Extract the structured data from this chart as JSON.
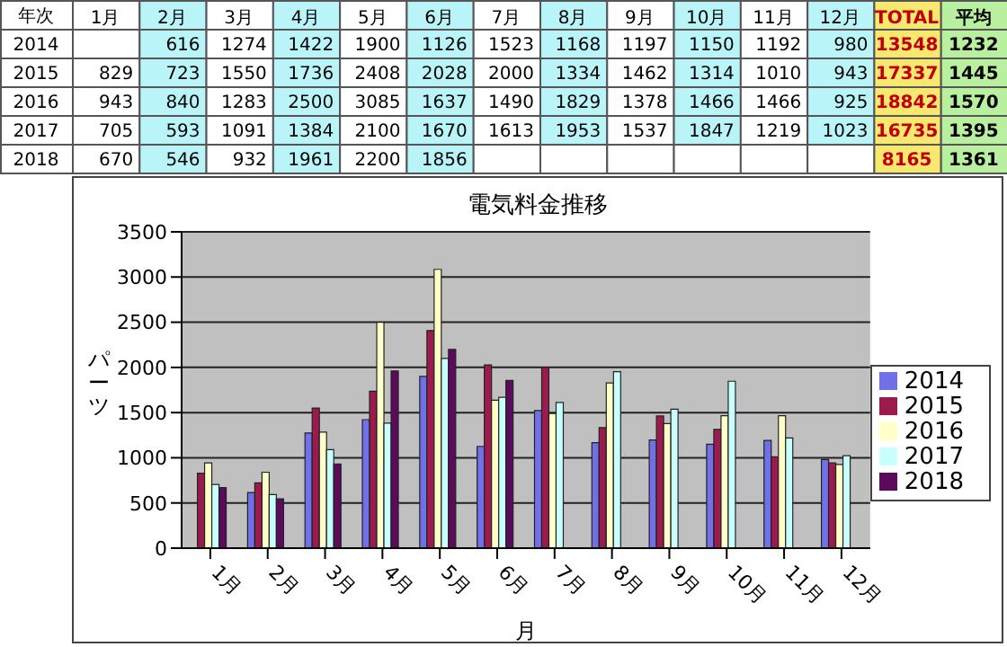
{
  "chart_data": [
    {
      "type": "heatmap",
      "ylabel": "年次",
      "categories": [
        "1月",
        "2月",
        "3月",
        "4月",
        "5月",
        "6月",
        "7月",
        "8月",
        "9月",
        "10月",
        "11月",
        "12月",
        "TOTAL",
        "平均"
      ],
      "y_categories": [
        "2014",
        "2015",
        "2016",
        "2017",
        "2018"
      ],
      "cells": [
        [
          null,
          616,
          1274,
          1422,
          1900,
          1126,
          1523,
          1168,
          1197,
          1150,
          1192,
          980,
          13548,
          1232
        ],
        [
          829,
          723,
          1550,
          1736,
          2408,
          2028,
          2000,
          1334,
          1462,
          1314,
          1010,
          943,
          17337,
          1445
        ],
        [
          943,
          840,
          1283,
          2500,
          3085,
          1637,
          1490,
          1829,
          1378,
          1466,
          1466,
          925,
          18842,
          1570
        ],
        [
          705,
          593,
          1091,
          1384,
          2100,
          1670,
          1613,
          1953,
          1537,
          1847,
          1219,
          1023,
          16735,
          1395
        ],
        [
          670,
          546,
          932,
          1961,
          2200,
          1856,
          null,
          null,
          null,
          null,
          null,
          null,
          8165,
          1361
        ]
      ],
      "cell_labels": [
        [
          null,
          "616",
          "1274",
          "1422",
          "1900",
          "1126",
          "1523",
          "1168",
          "1197",
          "1150",
          "1192",
          "980",
          "13548",
          "1232"
        ],
        [
          "829",
          "723",
          "1550",
          "1736",
          "2408",
          "2028",
          "2000",
          "1334",
          "1462",
          "1314",
          "1010",
          "943",
          "17337",
          "1445"
        ],
        [
          "943",
          "840",
          "1283",
          "2500",
          "3085",
          "1637",
          "1490",
          "1829",
          "1378",
          "1466",
          "1466",
          "925",
          "18842",
          "1570"
        ],
        [
          "705",
          "593",
          "1091",
          "1384",
          "2100",
          "1670",
          "1613",
          "1953",
          "1537",
          "1847",
          "1219",
          "1023",
          "16735",
          "1395"
        ],
        [
          "670",
          "546",
          "932",
          "1961",
          "2200",
          "1856",
          null,
          null,
          null,
          null,
          null,
          null,
          "8165",
          "1361"
        ]
      ]
    },
    {
      "type": "bar",
      "title": "電気料金推移",
      "xlabel": "月",
      "ylabel": "パーツ",
      "categories": [
        "1月",
        "2月",
        "3月",
        "4月",
        "5月",
        "6月",
        "7月",
        "8月",
        "9月",
        "10月",
        "11月",
        "12月"
      ],
      "series": [
        {
          "name": "2014",
          "color": "#7070e8",
          "values": [
            null,
            616,
            1274,
            1422,
            1900,
            1126,
            1523,
            1168,
            1197,
            1150,
            1192,
            980
          ]
        },
        {
          "name": "2015",
          "color": "#9b1b4f",
          "values": [
            829,
            723,
            1550,
            1736,
            2408,
            2028,
            2000,
            1334,
            1462,
            1314,
            1010,
            943
          ]
        },
        {
          "name": "2016",
          "color": "#ffffc8",
          "values": [
            943,
            840,
            1283,
            2500,
            3085,
            1637,
            1490,
            1829,
            1378,
            1466,
            1466,
            925
          ]
        },
        {
          "name": "2017",
          "color": "#c8ffff",
          "values": [
            705,
            593,
            1091,
            1384,
            2100,
            1670,
            1613,
            1953,
            1537,
            1847,
            1219,
            1023
          ]
        },
        {
          "name": "2018",
          "color": "#5c0a5c",
          "values": [
            670,
            546,
            932,
            1961,
            2200,
            1856,
            null,
            null,
            null,
            null,
            null,
            null
          ]
        }
      ],
      "ylim": [
        0,
        3500
      ],
      "yticks": [
        0,
        500,
        1000,
        1500,
        2000,
        2500,
        3000,
        3500
      ],
      "grid": "y",
      "legend": "right"
    }
  ]
}
